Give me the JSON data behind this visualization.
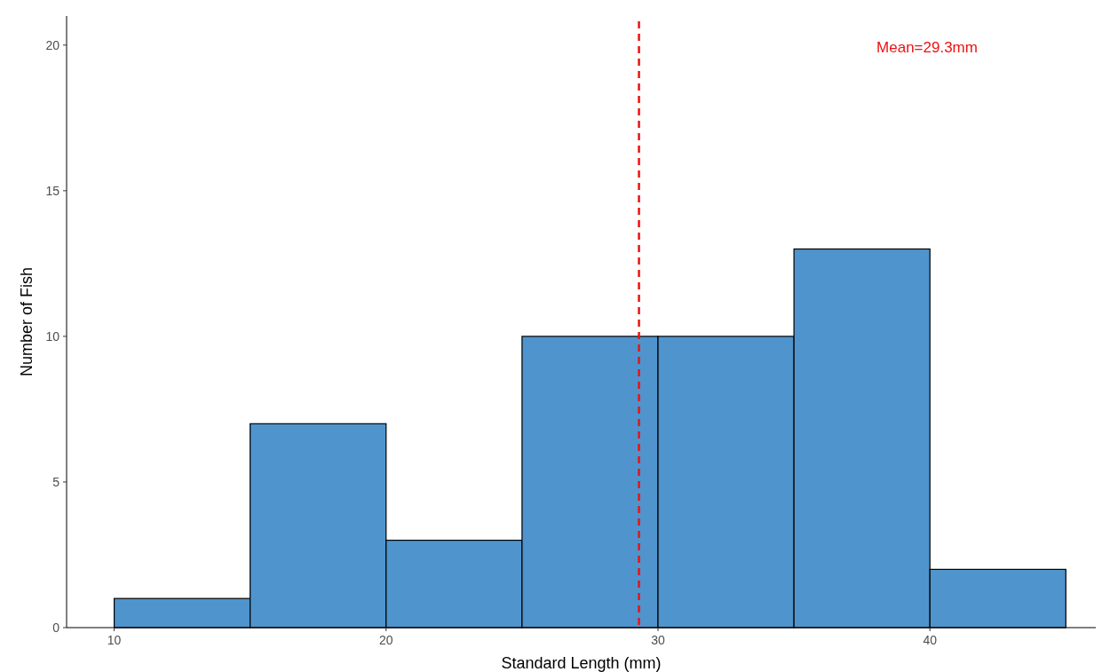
{
  "chart_data": {
    "type": "histogram",
    "xlabel": "Standard Length (mm)",
    "ylabel": "Number of Fish",
    "bins": [
      10,
      15,
      20,
      25,
      30,
      35,
      40,
      45
    ],
    "values": [
      1,
      7,
      3,
      10,
      10,
      13,
      2
    ],
    "color": "#4f94cd",
    "xlim": [
      8.25,
      46.1
    ],
    "xticks": [
      10,
      20,
      30,
      40
    ],
    "ylim": [
      0,
      21
    ],
    "yticks": [
      0,
      5,
      10,
      15,
      20
    ],
    "grid": false,
    "ref_lines": [
      {
        "axis": "x",
        "value": 29.3,
        "label": "Mean=29.3mm",
        "color": "#ee1111",
        "line_style": "dashed"
      }
    ]
  }
}
